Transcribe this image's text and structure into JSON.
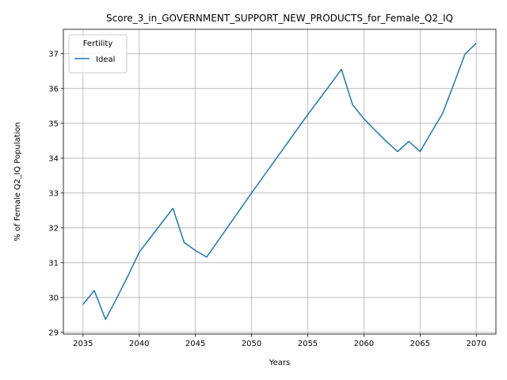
{
  "chart_data": {
    "type": "line",
    "title": "Score_3_in_GOVERNMENT_SUPPORT_NEW_PRODUCTS_for_Female_Q2_IQ",
    "xlabel": "Years",
    "ylabel": "% of Female Q2_IQ Population",
    "xlim": [
      2033.25,
      2071.75
    ],
    "ylim": [
      28.95,
      37.7
    ],
    "xticks": [
      2035,
      2040,
      2045,
      2050,
      2055,
      2060,
      2065,
      2070
    ],
    "yticks": [
      29,
      30,
      31,
      32,
      33,
      34,
      35,
      36,
      37
    ],
    "grid": true,
    "legend": {
      "title": "Fertility",
      "placement": "top-left"
    },
    "series": [
      {
        "name": "Ideal",
        "color": "#1f77b4",
        "x": [
          2035,
          2036,
          2037,
          2038,
          2039,
          2040,
          2041,
          2042,
          2043,
          2044,
          2045,
          2046,
          2047,
          2048,
          2049,
          2050,
          2051,
          2052,
          2053,
          2054,
          2055,
          2056,
          2057,
          2058,
          2059,
          2060,
          2061,
          2062,
          2063,
          2064,
          2065,
          2066,
          2067,
          2068,
          2069,
          2070
        ],
        "y": [
          29.8,
          30.2,
          29.37,
          29.98,
          30.62,
          31.3,
          31.72,
          32.14,
          32.56,
          31.58,
          31.35,
          31.16,
          31.62,
          32.08,
          32.54,
          33.0,
          33.45,
          33.9,
          34.35,
          34.8,
          35.25,
          35.68,
          36.11,
          36.55,
          35.53,
          35.13,
          34.8,
          34.48,
          34.19,
          34.48,
          34.19,
          34.74,
          35.28,
          36.13,
          36.99,
          37.3
        ]
      }
    ]
  }
}
